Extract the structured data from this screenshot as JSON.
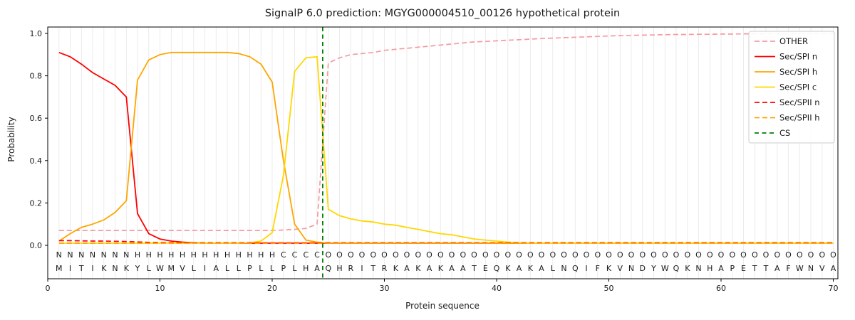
{
  "title": "SignalP 6.0 prediction: MGYG000004510_00126 hypothetical protein",
  "chart_data": {
    "type": "line",
    "xlabel": "Protein sequence",
    "ylabel": "Probability",
    "x_ticks": [
      0,
      10,
      20,
      30,
      40,
      50,
      60,
      70
    ],
    "y_ticks": [
      0.0,
      0.2,
      0.4,
      0.6,
      0.8,
      1.0
    ],
    "xlim": [
      0,
      70.4
    ],
    "grid": "vertical-per-residue",
    "grid_color": "#e7e7e7",
    "legend_position": "upper right",
    "sequence": "MITIKNKYLWMVLIALLPLLPLHAQHRITRKAKAKAATEQKAKALNQIFKVNDYWQKNHAPETTAFWNVA",
    "region_labels": "NNNNNNNHHHHHHHHHHHHHCCCCOOOOOOOOOOOOOOOOOOOOOOOOOOOOOOOOOOOOOOOOOOOOOO",
    "region_colors": {
      "N": "#ff0000",
      "H": "#ffa500",
      "C": "#ffd700",
      "O": "#c3c3c3"
    },
    "residue_text_color": "#1a1a1a",
    "cleavage_site": {
      "label": "CS",
      "x": 24.5,
      "color": "#008000"
    },
    "x_start": 1,
    "series": [
      {
        "name": "OTHER",
        "color": "#f49ba1",
        "dash": "7,4",
        "values": [
          0.07,
          0.07,
          0.07,
          0.07,
          0.07,
          0.07,
          0.07,
          0.07,
          0.07,
          0.07,
          0.07,
          0.07,
          0.07,
          0.07,
          0.07,
          0.07,
          0.07,
          0.07,
          0.07,
          0.07,
          0.072,
          0.075,
          0.08,
          0.1,
          0.86,
          0.885,
          0.9,
          0.905,
          0.91,
          0.92,
          0.925,
          0.93,
          0.935,
          0.94,
          0.945,
          0.95,
          0.955,
          0.96,
          0.962,
          0.965,
          0.968,
          0.97,
          0.973,
          0.976,
          0.978,
          0.98,
          0.982,
          0.984,
          0.986,
          0.988,
          0.99,
          0.991,
          0.992,
          0.993,
          0.994,
          0.995,
          0.995,
          0.996,
          0.996,
          0.997,
          0.997,
          0.998,
          0.998,
          0.998,
          0.999,
          0.999,
          0.999,
          1.0,
          1.0,
          1.0
        ]
      },
      {
        "name": "Sec/SPI n",
        "color": "#ff0000",
        "dash": null,
        "values": [
          0.91,
          0.89,
          0.855,
          0.815,
          0.785,
          0.755,
          0.7,
          0.15,
          0.055,
          0.03,
          0.02,
          0.015,
          0.012,
          0.01,
          0.01,
          0.01,
          0.01,
          0.01,
          0.01,
          0.01,
          0.01,
          0.01,
          0.01,
          0.01,
          0.01,
          0.01,
          0.01,
          0.01,
          0.01,
          0.01,
          0.01,
          0.01,
          0.01,
          0.01,
          0.01,
          0.01,
          0.01,
          0.01,
          0.01,
          0.01,
          0.01,
          0.01,
          0.01,
          0.01,
          0.01,
          0.01,
          0.01,
          0.01,
          0.01,
          0.01,
          0.01,
          0.01,
          0.01,
          0.01,
          0.01,
          0.01,
          0.01,
          0.01,
          0.01,
          0.01,
          0.01,
          0.01,
          0.01,
          0.01,
          0.01,
          0.01,
          0.01,
          0.01,
          0.01,
          0.01
        ]
      },
      {
        "name": "Sec/SPI h",
        "color": "#ffa500",
        "dash": null,
        "values": [
          0.02,
          0.055,
          0.085,
          0.1,
          0.12,
          0.155,
          0.21,
          0.78,
          0.875,
          0.9,
          0.91,
          0.91,
          0.91,
          0.91,
          0.91,
          0.91,
          0.905,
          0.89,
          0.855,
          0.77,
          0.4,
          0.1,
          0.025,
          0.015,
          0.01,
          0.01,
          0.01,
          0.01,
          0.01,
          0.01,
          0.01,
          0.01,
          0.01,
          0.01,
          0.01,
          0.01,
          0.01,
          0.01,
          0.01,
          0.01,
          0.01,
          0.01,
          0.01,
          0.01,
          0.01,
          0.01,
          0.01,
          0.01,
          0.01,
          0.01,
          0.01,
          0.01,
          0.01,
          0.01,
          0.01,
          0.01,
          0.01,
          0.01,
          0.01,
          0.01,
          0.01,
          0.01,
          0.01,
          0.01,
          0.01,
          0.01,
          0.01,
          0.01,
          0.01,
          0.01
        ]
      },
      {
        "name": "Sec/SPI c",
        "color": "#ffd700",
        "dash": null,
        "values": [
          0.01,
          0.01,
          0.01,
          0.01,
          0.01,
          0.01,
          0.01,
          0.01,
          0.01,
          0.01,
          0.01,
          0.01,
          0.01,
          0.01,
          0.01,
          0.01,
          0.01,
          0.012,
          0.02,
          0.06,
          0.33,
          0.82,
          0.885,
          0.89,
          0.17,
          0.14,
          0.125,
          0.115,
          0.11,
          0.1,
          0.095,
          0.085,
          0.075,
          0.065,
          0.055,
          0.05,
          0.04,
          0.03,
          0.025,
          0.02,
          0.015,
          0.012,
          0.01,
          0.01,
          0.01,
          0.01,
          0.01,
          0.01,
          0.01,
          0.01,
          0.01,
          0.01,
          0.01,
          0.01,
          0.01,
          0.01,
          0.01,
          0.01,
          0.01,
          0.01,
          0.01,
          0.01,
          0.01,
          0.01,
          0.01,
          0.01,
          0.01,
          0.01,
          0.01,
          0.01
        ]
      },
      {
        "name": "Sec/SPII n",
        "color": "#ff0000",
        "dash": "7,4",
        "values": [
          0.022,
          0.022,
          0.021,
          0.02,
          0.02,
          0.019,
          0.018,
          0.016,
          0.014,
          0.013,
          0.012,
          0.012,
          0.012,
          0.012,
          0.012,
          0.012,
          0.012,
          0.012,
          0.012,
          0.012,
          0.012,
          0.012,
          0.012,
          0.012,
          0.012,
          0.012,
          0.012,
          0.012,
          0.012,
          0.012,
          0.012,
          0.012,
          0.012,
          0.012,
          0.012,
          0.012,
          0.012,
          0.012,
          0.012,
          0.012,
          0.012,
          0.012,
          0.012,
          0.012,
          0.012,
          0.012,
          0.012,
          0.012,
          0.012,
          0.012,
          0.012,
          0.012,
          0.012,
          0.012,
          0.012,
          0.012,
          0.012,
          0.012,
          0.012,
          0.012,
          0.012,
          0.012,
          0.012,
          0.012,
          0.012,
          0.012,
          0.012,
          0.012,
          0.012,
          0.012
        ]
      },
      {
        "name": "Sec/SPII h",
        "color": "#ffa500",
        "dash": "7,4",
        "values": [
          0.01,
          0.01,
          0.01,
          0.01,
          0.01,
          0.01,
          0.01,
          0.01,
          0.01,
          0.01,
          0.01,
          0.01,
          0.01,
          0.01,
          0.01,
          0.01,
          0.01,
          0.01,
          0.01,
          0.01,
          0.01,
          0.01,
          0.01,
          0.01,
          0.01,
          0.01,
          0.01,
          0.01,
          0.01,
          0.01,
          0.01,
          0.01,
          0.01,
          0.01,
          0.01,
          0.01,
          0.01,
          0.01,
          0.01,
          0.01,
          0.01,
          0.01,
          0.01,
          0.01,
          0.01,
          0.01,
          0.01,
          0.01,
          0.01,
          0.01,
          0.01,
          0.01,
          0.01,
          0.01,
          0.01,
          0.01,
          0.01,
          0.01,
          0.01,
          0.01,
          0.01,
          0.01,
          0.01,
          0.01,
          0.01,
          0.01,
          0.01,
          0.01,
          0.01,
          0.01
        ]
      }
    ]
  }
}
